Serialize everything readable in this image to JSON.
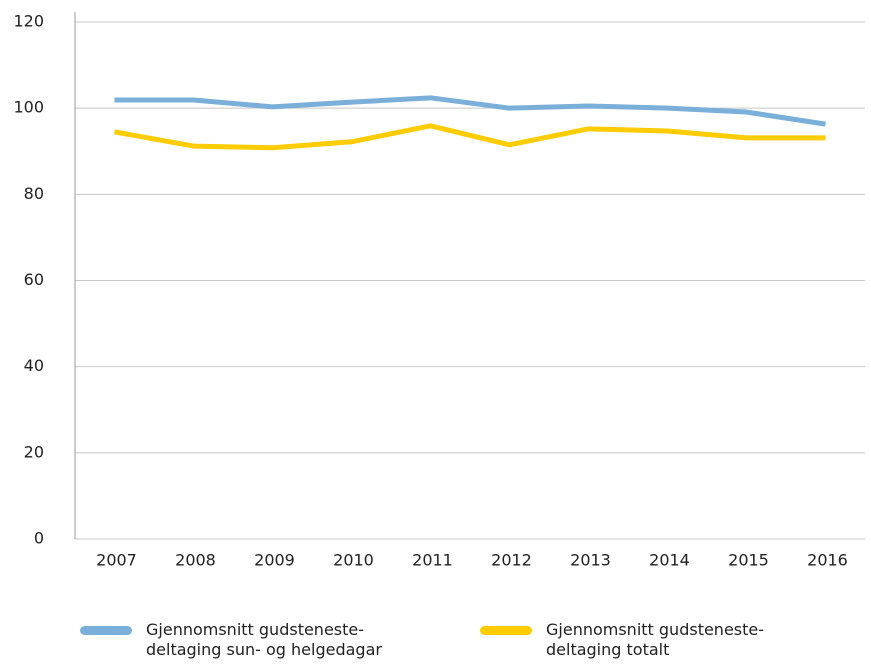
{
  "chart_data": {
    "type": "line",
    "categories": [
      "2007",
      "2008",
      "2009",
      "2010",
      "2011",
      "2012",
      "2013",
      "2014",
      "2015",
      "2016"
    ],
    "series": [
      {
        "name": "Gjennomsnitt gudsteneste-deltaging sun- og helgedagar",
        "color": "#79afd9",
        "values": [
          101.9,
          101.9,
          100.3,
          101.4,
          102.4,
          100,
          100.5,
          100,
          99.1,
          96.3
        ]
      },
      {
        "name": "Gjennomsnitt gudsteneste-deltaging totalt",
        "color": "#ffcc00",
        "values": [
          94.5,
          91.2,
          90.8,
          92.2,
          95.9,
          91.5,
          95.2,
          94.7,
          93.1,
          93.1
        ]
      }
    ],
    "ylim": [
      0,
      120
    ],
    "yticks": [
      0,
      20,
      40,
      60,
      80,
      100,
      120
    ],
    "grid": true
  }
}
